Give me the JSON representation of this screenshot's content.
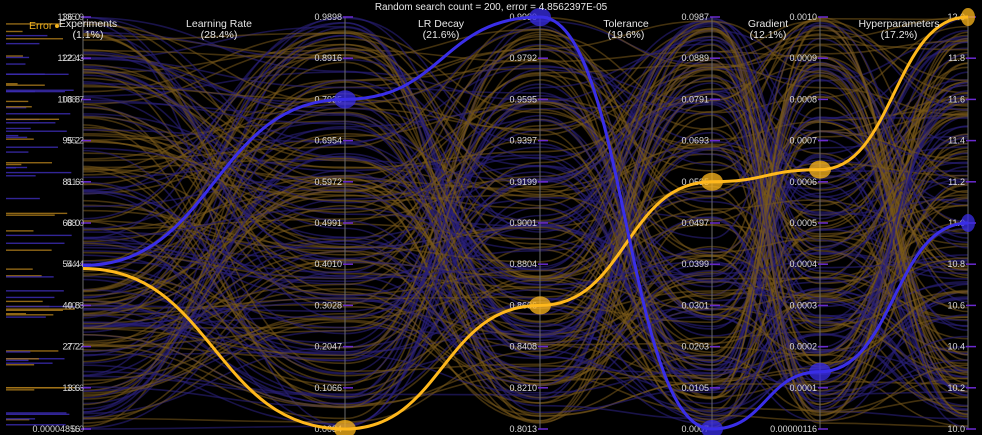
{
  "title": "Random search count = 200, error = 4.8562397E-05",
  "error_label": "Error",
  "colors": {
    "background": "#000000",
    "good_line": "#ffb81c",
    "bad_line": "#3a2ee8",
    "bg_good": "#7a5a1a",
    "bg_bad": "#2a1f7a",
    "axis": "#6a6a6a",
    "tick_mark": "#6a2ad0"
  },
  "chart_data": {
    "type": "parallel-coordinates",
    "title": "Random search count = 200, error = 4.8562397E-05",
    "axes": [
      {
        "name": "Experiments",
        "importance": "(1.1%)",
        "ticks": [
          "0.00004856",
          "13.6",
          "27.2",
          "40.8",
          "54.4",
          "68.0",
          "81.6",
          "95.2",
          "108.8",
          "122.4",
          "136.0"
        ],
        "overlay_ticks": [
          "0.0",
          "13.6",
          "27.2",
          "40.8",
          "54.4",
          "68.0",
          "81.6",
          "95.2",
          "108.7",
          "122.3",
          "135.9"
        ],
        "min": 0,
        "max": 136
      },
      {
        "name": "Learning Rate",
        "importance": "(28.4%)",
        "ticks": [
          "0.0084",
          "0.1066",
          "0.2047",
          "0.3028",
          "0.4010",
          "0.4991",
          "0.5972",
          "0.6954",
          "0.7935",
          "0.8916",
          "0.9898"
        ],
        "min": 0.0084,
        "max": 0.9898
      },
      {
        "name": "LR Decay",
        "importance": "(21.6%)",
        "ticks": [
          "0.8013",
          "0.8210",
          "0.8408",
          "0.8606",
          "0.8804",
          "0.9001",
          "0.9199",
          "0.9397",
          "0.9595",
          "0.9792",
          "0.9990"
        ],
        "min": 0.8013,
        "max": 0.999
      },
      {
        "name": "Tolerance",
        "importance": "(19.6%)",
        "ticks": [
          "0.0007",
          "0.0105",
          "0.0203",
          "0.0301",
          "0.0399",
          "0.0497",
          "0.0595",
          "0.0693",
          "0.0791",
          "0.0889",
          "0.0987"
        ],
        "min": 0.0007,
        "max": 0.0987
      },
      {
        "name": "Gradient",
        "importance": "(12.1%)",
        "ticks": [
          "0.00000116",
          "0.0001",
          "0.0002",
          "0.0003",
          "0.0004",
          "0.0005",
          "0.0006",
          "0.0007",
          "0.0008",
          "0.0009",
          "0.0010"
        ],
        "min": 1.16e-06,
        "max": 0.001
      },
      {
        "name": "Hyperparameters",
        "importance": "(17.2%)",
        "ticks": [
          "10.0",
          "10.2",
          "10.4",
          "10.6",
          "10.8",
          "11.0",
          "11.2",
          "11.4",
          "11.6",
          "11.8",
          "12.0"
        ],
        "min": 10.0,
        "max": 12.0
      }
    ],
    "highlighted": [
      {
        "values": [
          53,
          0.0084,
          0.8606,
          0.0595,
          0.00063,
          12.0
        ],
        "color": "#ffb81c"
      },
      {
        "values": [
          54,
          0.7935,
          0.999,
          0.0007,
          0.00014,
          11.0
        ],
        "color": "#3a2ee8"
      }
    ],
    "background_line_count": 200,
    "grid": false
  }
}
